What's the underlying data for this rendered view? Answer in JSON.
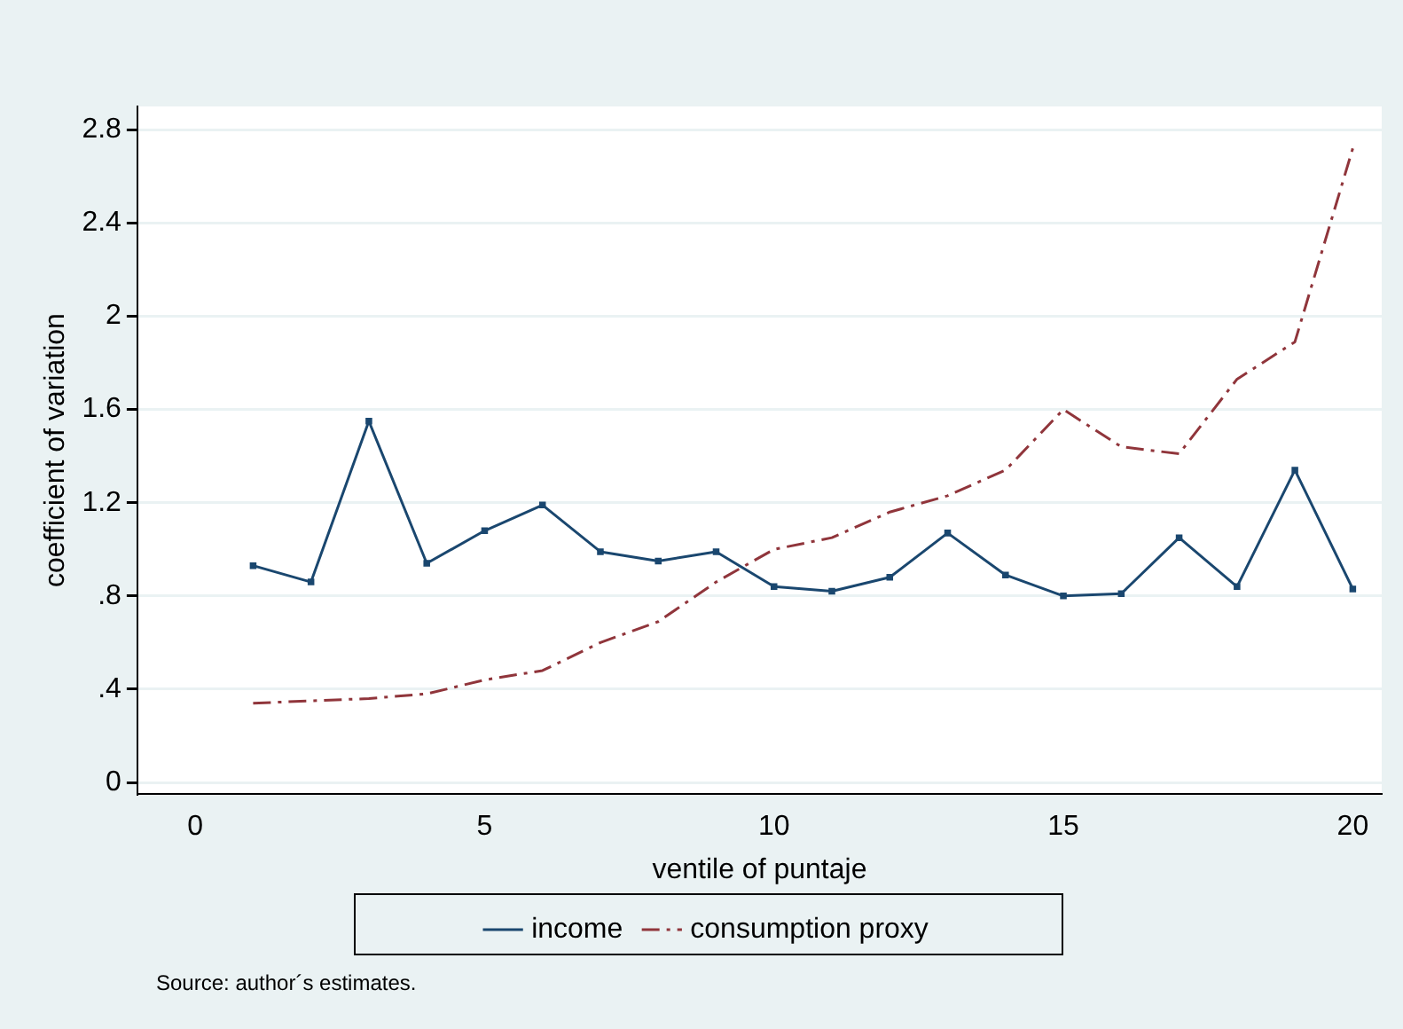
{
  "chart_data": {
    "type": "line",
    "xlabel": "ventile of puntaje",
    "ylabel": "coefficient of variation",
    "x": [
      1,
      2,
      3,
      4,
      5,
      6,
      7,
      8,
      9,
      10,
      11,
      12,
      13,
      14,
      15,
      16,
      17,
      18,
      19,
      20
    ],
    "series": [
      {
        "name": "income",
        "color": "#1a476f",
        "marker": "square",
        "line_style": "solid",
        "values": [
          0.93,
          0.86,
          1.55,
          0.94,
          1.08,
          1.19,
          0.99,
          0.95,
          0.99,
          0.84,
          0.82,
          0.88,
          1.07,
          0.89,
          0.8,
          0.81,
          1.05,
          0.84,
          1.34,
          0.83
        ]
      },
      {
        "name": "consumption proxy",
        "color": "#90353b",
        "marker": "none",
        "line_style": "dashed",
        "values": [
          0.34,
          0.35,
          0.36,
          0.38,
          0.44,
          0.48,
          0.6,
          0.69,
          0.86,
          1.0,
          1.05,
          1.16,
          1.23,
          1.34,
          1.6,
          1.44,
          1.41,
          1.73,
          1.89,
          2.72
        ]
      }
    ],
    "xlim": [
      -1,
      20.5
    ],
    "xticks": [
      0,
      5,
      10,
      15,
      20
    ],
    "ylim": [
      -0.05,
      2.9
    ],
    "yticks": [
      0,
      {
        "value": 0.4,
        "label": ".4"
      },
      {
        "value": 0.8,
        "label": ".8"
      },
      1.2,
      1.6,
      2,
      2.4,
      2.8
    ],
    "grid": "y",
    "legend": "bottom",
    "annotations": [
      "Source: author´s estimates."
    ]
  }
}
